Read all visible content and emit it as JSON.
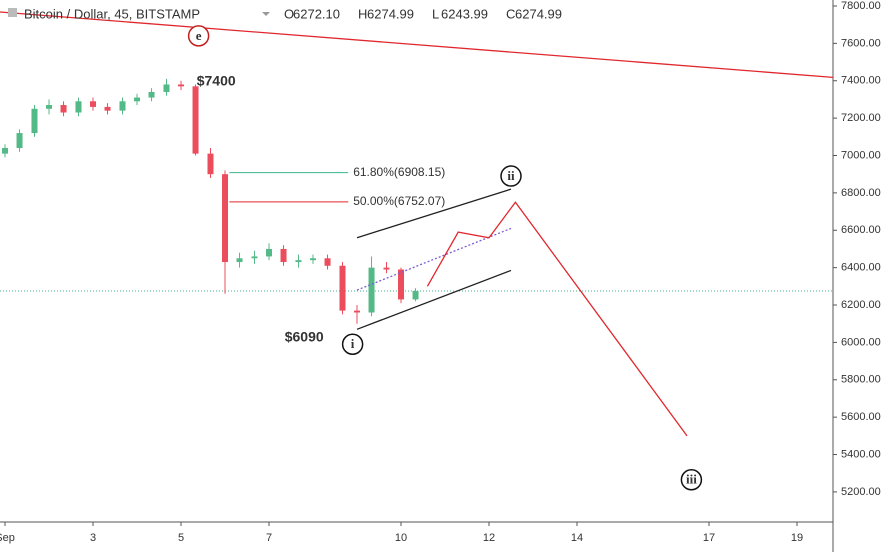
{
  "chart_data": {
    "type": "candlestick",
    "title": "Bitcoin / Dollar, 45, BITSTAMP",
    "ohlc_header": [
      {
        "label": "O",
        "value": "6272.10"
      },
      {
        "label": "H",
        "value": "6274.99"
      },
      {
        "label": "L",
        "value": "6243.99"
      },
      {
        "label": "C",
        "value": "6274.99"
      }
    ],
    "x": [
      1,
      1.33,
      1.67,
      2,
      2.33,
      2.67,
      3,
      3.33,
      3.67,
      4,
      4.33,
      4.67,
      5,
      5.33,
      5.67,
      6,
      6.33,
      6.67,
      7,
      7.33,
      7.67,
      8,
      8.33,
      8.67,
      9,
      9.33,
      9.67,
      10,
      10.33
    ],
    "open": [
      7010,
      7040,
      7120,
      7250,
      7270,
      7230,
      7290,
      7260,
      7240,
      7290,
      7310,
      7340,
      7380,
      7370,
      7010,
      6900,
      6430,
      6450,
      6460,
      6500,
      6430,
      6440,
      6450,
      6410,
      6170,
      6160,
      6400,
      6390,
      6230
    ],
    "high": [
      7060,
      7140,
      7270,
      7300,
      7290,
      7310,
      7310,
      7280,
      7310,
      7330,
      7360,
      7410,
      7400,
      7380,
      7040,
      6920,
      6480,
      6490,
      6530,
      6520,
      6470,
      6470,
      6470,
      6430,
      6200,
      6460,
      6430,
      6400,
      6290
    ],
    "low": [
      6990,
      7020,
      7100,
      7220,
      7210,
      7210,
      7240,
      7220,
      7220,
      7270,
      7290,
      7320,
      7350,
      7000,
      6880,
      6260,
      6400,
      6420,
      6440,
      6410,
      6400,
      6420,
      6390,
      6150,
      6100,
      6140,
      6370,
      6210,
      6220
    ],
    "close": [
      7040,
      7120,
      7250,
      7270,
      7230,
      7290,
      7260,
      7240,
      7290,
      7310,
      7340,
      7380,
      7370,
      7010,
      6900,
      6430,
      6450,
      6460,
      6500,
      6430,
      6440,
      6450,
      6410,
      6170,
      6160,
      6400,
      6390,
      6230,
      6275
    ],
    "up_color": "#53b987",
    "down_color": "#eb4d5c",
    "xlim": [
      0.886,
      19.818
    ],
    "ylim": [
      5039,
      7832
    ],
    "xticks": [
      {
        "value": 1,
        "label": "Sep"
      },
      3,
      5,
      7,
      10,
      12,
      14,
      17,
      19
    ],
    "yticks": [
      {
        "value": 5200,
        "label": "5200.00"
      },
      {
        "value": 5400,
        "label": "5400.00"
      },
      {
        "value": 5600,
        "label": "5600.00"
      },
      {
        "value": 5800,
        "label": "5800.00"
      },
      {
        "value": 6000,
        "label": "6000.00"
      },
      {
        "value": 6200,
        "label": "6200.00"
      },
      {
        "value": 6400,
        "label": "6400.00"
      },
      {
        "value": 6600,
        "label": "6600.00"
      },
      {
        "value": 6800,
        "label": "6800.00"
      },
      {
        "value": 7000,
        "label": "7000.00"
      },
      {
        "value": 7200,
        "label": "7200.00"
      },
      {
        "value": 7400,
        "label": "7400.00"
      },
      {
        "value": 7600,
        "label": "7600.00"
      },
      {
        "value": 7800,
        "label": "7800.00"
      }
    ],
    "current_price": 6275,
    "lines": [
      {
        "name": "trendline",
        "color": "#e0282e",
        "dash": false,
        "x": [
          0.886,
          19.818
        ],
        "y": [
          7768,
          7418
        ]
      },
      {
        "name": "channel-upper",
        "color": "#222222",
        "dash": false,
        "x": [
          9.0,
          12.5
        ],
        "y": [
          6560,
          6820
        ]
      },
      {
        "name": "channel-lower",
        "color": "#222222",
        "dash": false,
        "x": [
          9.0,
          12.5
        ],
        "y": [
          6070,
          6385
        ]
      },
      {
        "name": "channel-mid",
        "color": "#7b5cd6",
        "dash": true,
        "x": [
          9.0,
          12.5
        ],
        "y": [
          6280,
          6610
        ]
      },
      {
        "name": "projection",
        "color": "#e0282e",
        "dash": false,
        "x": [
          10.6,
          11.3,
          12.0,
          12.6,
          16.5
        ],
        "y": [
          6300,
          6590,
          6560,
          6750,
          5500
        ]
      }
    ],
    "fib_levels": [
      {
        "label": "61.80%(6908.15)",
        "value": 6908.15,
        "color": "#3fb58e",
        "x": [
          6.1,
          8.8
        ]
      },
      {
        "label": "50.00%(6752.07)",
        "value": 6752.07,
        "color": "#e0282e",
        "x": [
          6.1,
          8.8
        ]
      }
    ],
    "annotations": [
      {
        "text": "e",
        "x": 5.4,
        "y": 7640,
        "circle": true,
        "color": "#c0201f"
      },
      {
        "text": "$7400",
        "x": 5.8,
        "y": 7400,
        "circle": false,
        "color": "#d01010"
      },
      {
        "text": "$6090",
        "x": 7.8,
        "y": 6030,
        "circle": false,
        "color": "#d01010"
      },
      {
        "text": "i",
        "x": 8.9,
        "y": 5990,
        "circle": true,
        "color": "#111111"
      },
      {
        "text": "ii",
        "x": 12.5,
        "y": 6890,
        "circle": true,
        "color": "#111111"
      },
      {
        "text": "iii",
        "x": 16.6,
        "y": 5265,
        "circle": true,
        "color": "#111111"
      }
    ]
  }
}
